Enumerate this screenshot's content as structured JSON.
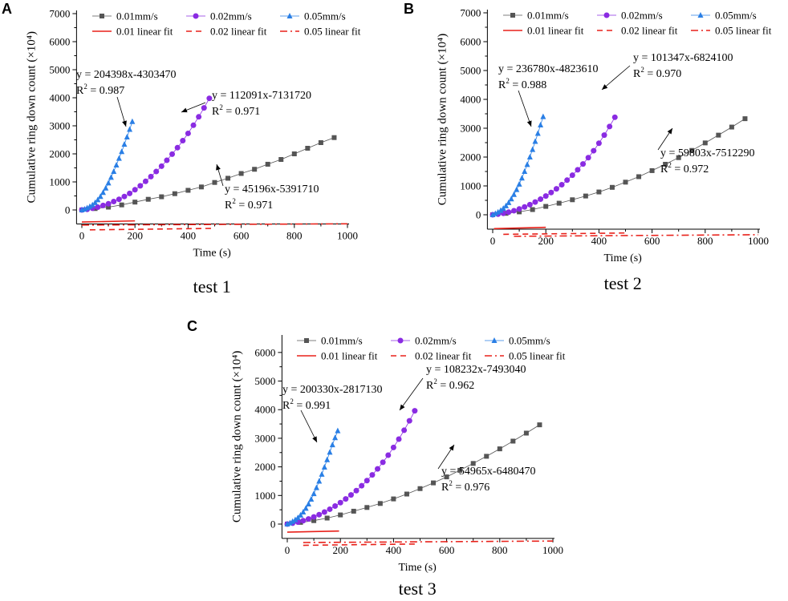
{
  "figure": {
    "colors": {
      "s001": "#555555",
      "s002": "#8a2be2",
      "s005": "#2a7fe5",
      "fit": "#e8211a",
      "axis": "#000000"
    }
  },
  "chart_data": [
    {
      "panel_label": "A",
      "caption": "test 1",
      "type": "line",
      "xlabel": "Time (s)",
      "ylabel": "Cumulative ring down count (×10⁴)",
      "xlim": [
        -20,
        1000
      ],
      "ylim": [
        -500,
        7000
      ],
      "xticks": [
        0,
        200,
        400,
        600,
        800,
        1000
      ],
      "yticks": [
        0,
        1000,
        2000,
        3000,
        4000,
        5000,
        6000,
        7000
      ],
      "legend": {
        "position": "top",
        "series_labels": [
          "0.01mm/s",
          "0.02mm/s",
          "0.05mm/s"
        ],
        "fit_labels": [
          "0.01 linear fit",
          "0.02 linear fit",
          "0.05 linear fit"
        ]
      },
      "series": [
        {
          "name": "0.01mm/s",
          "marker": "square",
          "x": [
            0,
            50,
            100,
            150,
            200,
            250,
            300,
            350,
            400,
            450,
            500,
            550,
            600,
            650,
            700,
            750,
            800,
            850,
            900,
            950
          ],
          "y": [
            0,
            50,
            100,
            180,
            280,
            380,
            470,
            580,
            700,
            820,
            980,
            1130,
            1300,
            1450,
            1630,
            1800,
            2000,
            2200,
            2400,
            2580
          ]
        },
        {
          "name": "0.02mm/s",
          "marker": "circle",
          "x": [
            0,
            20,
            40,
            60,
            80,
            100,
            120,
            140,
            160,
            180,
            200,
            220,
            240,
            260,
            280,
            300,
            320,
            340,
            360,
            380,
            400,
            420,
            440,
            460,
            480
          ],
          "y": [
            0,
            20,
            60,
            100,
            160,
            220,
            300,
            380,
            480,
            590,
            720,
            860,
            1020,
            1190,
            1370,
            1560,
            1770,
            1990,
            2220,
            2470,
            2730,
            3020,
            3320,
            3640,
            3980
          ]
        },
        {
          "name": "0.05mm/s",
          "marker": "triangle",
          "x": [
            0,
            10,
            20,
            30,
            40,
            50,
            60,
            70,
            80,
            90,
            100,
            110,
            120,
            130,
            140,
            150,
            160,
            170,
            180,
            190
          ],
          "y": [
            0,
            30,
            70,
            120,
            180,
            260,
            360,
            480,
            620,
            780,
            960,
            1160,
            1370,
            1600,
            1840,
            2080,
            2340,
            2600,
            2870,
            3150
          ]
        }
      ],
      "fits": [
        {
          "name": "0.01 linear fit",
          "style": "solid",
          "slope": 0.204398,
          "intercept": -430.347,
          "x_range": [
            0,
            200
          ],
          "equation": "y = 204398x-4303470",
          "r2": "R² = 0.987"
        },
        {
          "name": "0.02 linear fit",
          "style": "dash",
          "slope": 0.112091,
          "intercept": -713.172,
          "x_range": [
            30,
            490
          ],
          "equation": "y = 112091x-7131720",
          "r2": "R² = 0.971"
        },
        {
          "name": "0.05 linear fit",
          "style": "dashdot",
          "slope": 0.045196,
          "intercept": -539.171,
          "x_range": [
            0,
            1000
          ],
          "equation": "y = 45196x-5391710",
          "r2": "R² = 0.971"
        }
      ]
    },
    {
      "panel_label": "B",
      "caption": "test 2",
      "type": "line",
      "xlabel": "Time (s)",
      "ylabel": "Cumulative ring down count (×10⁴)",
      "xlim": [
        -20,
        1000
      ],
      "ylim": [
        -500,
        7000
      ],
      "xticks": [
        0,
        200,
        400,
        600,
        800,
        1000
      ],
      "yticks": [
        0,
        1000,
        2000,
        3000,
        4000,
        5000,
        6000,
        7000
      ],
      "legend": {
        "position": "top",
        "series_labels": [
          "0.01mm/s",
          "0.02mm/s",
          "0.05mm/s"
        ],
        "fit_labels": [
          "0.01 linear fit",
          "0.02 linear fit",
          "0.05 linear fit"
        ]
      },
      "series": [
        {
          "name": "0.01mm/s",
          "marker": "square",
          "x": [
            0,
            50,
            100,
            150,
            200,
            250,
            300,
            350,
            400,
            450,
            500,
            550,
            600,
            650,
            700,
            750,
            800,
            850,
            900,
            950
          ],
          "y": [
            0,
            50,
            100,
            180,
            290,
            400,
            520,
            650,
            790,
            950,
            1130,
            1320,
            1530,
            1750,
            1980,
            2230,
            2490,
            2760,
            3040,
            3330
          ]
        },
        {
          "name": "0.02mm/s",
          "marker": "circle",
          "x": [
            0,
            20,
            40,
            60,
            80,
            100,
            120,
            140,
            160,
            180,
            200,
            220,
            240,
            260,
            280,
            300,
            320,
            340,
            360,
            380,
            400,
            420,
            440,
            460
          ],
          "y": [
            0,
            20,
            50,
            90,
            140,
            200,
            270,
            350,
            440,
            540,
            650,
            770,
            900,
            1040,
            1200,
            1370,
            1560,
            1760,
            1980,
            2220,
            2480,
            2760,
            3060,
            3380
          ]
        },
        {
          "name": "0.05mm/s",
          "marker": "triangle",
          "x": [
            0,
            10,
            20,
            30,
            40,
            50,
            60,
            70,
            80,
            90,
            100,
            110,
            120,
            130,
            140,
            150,
            160,
            170,
            180,
            190
          ],
          "y": [
            0,
            40,
            90,
            150,
            220,
            310,
            420,
            550,
            700,
            870,
            1060,
            1270,
            1500,
            1740,
            2000,
            2260,
            2540,
            2820,
            3110,
            3400
          ]
        }
      ],
      "fits": [
        {
          "name": "0.01 linear fit",
          "style": "solid",
          "slope": 0.23678,
          "intercept": -482.361,
          "x_range": [
            5,
            200
          ],
          "equation": "y = 236780x-4823610",
          "r2": "R² = 0.988"
        },
        {
          "name": "0.02 linear fit",
          "style": "dash",
          "slope": 0.101347,
          "intercept": -682.41,
          "x_range": [
            40,
            500
          ],
          "equation": "y = 101347x-6824100",
          "r2": "R² = 0.970"
        },
        {
          "name": "0.05 linear fit",
          "style": "dashdot",
          "slope": 0.059803,
          "intercept": -751.229,
          "x_range": [
            80,
            1000
          ],
          "equation": "y = 59803x-7512290",
          "r2": "R² = 0.972"
        }
      ]
    },
    {
      "panel_label": "C",
      "caption": "test 3",
      "type": "line",
      "xlabel": "Time (s)",
      "ylabel": "Cumulative ring down count (×10⁴)",
      "xlim": [
        -20,
        1000
      ],
      "ylim": [
        -500,
        6500
      ],
      "xticks": [
        0,
        200,
        400,
        600,
        800,
        1000
      ],
      "yticks": [
        0,
        1000,
        2000,
        3000,
        4000,
        5000,
        6000
      ],
      "legend": {
        "position": "top",
        "series_labels": [
          "0.01mm/s",
          "0.02mm/s",
          "0.05mm/s"
        ],
        "fit_labels": [
          "0.01 linear fit",
          "0.02 linear fit",
          "0.05 linear fit"
        ]
      },
      "series": [
        {
          "name": "0.01mm/s",
          "marker": "square",
          "x": [
            0,
            50,
            100,
            150,
            200,
            250,
            300,
            350,
            400,
            450,
            500,
            550,
            600,
            650,
            700,
            750,
            800,
            850,
            900,
            950
          ],
          "y": [
            0,
            60,
            120,
            210,
            320,
            450,
            580,
            720,
            880,
            1050,
            1240,
            1440,
            1650,
            1880,
            2120,
            2370,
            2630,
            2900,
            3180,
            3470
          ]
        },
        {
          "name": "0.02mm/s",
          "marker": "circle",
          "x": [
            0,
            20,
            40,
            60,
            80,
            100,
            120,
            140,
            160,
            180,
            200,
            220,
            240,
            260,
            280,
            300,
            320,
            340,
            360,
            380,
            400,
            420,
            440,
            460,
            480
          ],
          "y": [
            0,
            30,
            70,
            120,
            180,
            250,
            330,
            420,
            520,
            630,
            750,
            880,
            1020,
            1170,
            1340,
            1520,
            1720,
            1930,
            2160,
            2410,
            2680,
            2970,
            3280,
            3610,
            3960
          ]
        },
        {
          "name": "0.05mm/s",
          "marker": "triangle",
          "x": [
            0,
            10,
            20,
            30,
            40,
            50,
            60,
            70,
            80,
            90,
            100,
            110,
            120,
            130,
            140,
            150,
            160,
            170,
            180,
            190
          ],
          "y": [
            0,
            40,
            90,
            150,
            220,
            310,
            420,
            550,
            700,
            870,
            1060,
            1270,
            1500,
            1740,
            1990,
            2250,
            2510,
            2770,
            3020,
            3260
          ]
        }
      ],
      "fits": [
        {
          "name": "0.01 linear fit",
          "style": "solid",
          "slope": 0.20033,
          "intercept": -281.713,
          "x_range": [
            0,
            195
          ],
          "equation": "y = 200330x-2817130",
          "r2": "R² = 0.991"
        },
        {
          "name": "0.02 linear fit",
          "style": "dash",
          "slope": 0.108232,
          "intercept": -749.304,
          "x_range": [
            60,
            490
          ],
          "equation": "y = 108232x-7493040",
          "r2": "R² = 0.962"
        },
        {
          "name": "0.05 linear fit",
          "style": "dashdot",
          "slope": 0.054965,
          "intercept": -648.047,
          "x_range": [
            60,
            1000
          ],
          "equation": "y = 54965x-6480470",
          "r2": "R² = 0.976"
        }
      ]
    }
  ]
}
